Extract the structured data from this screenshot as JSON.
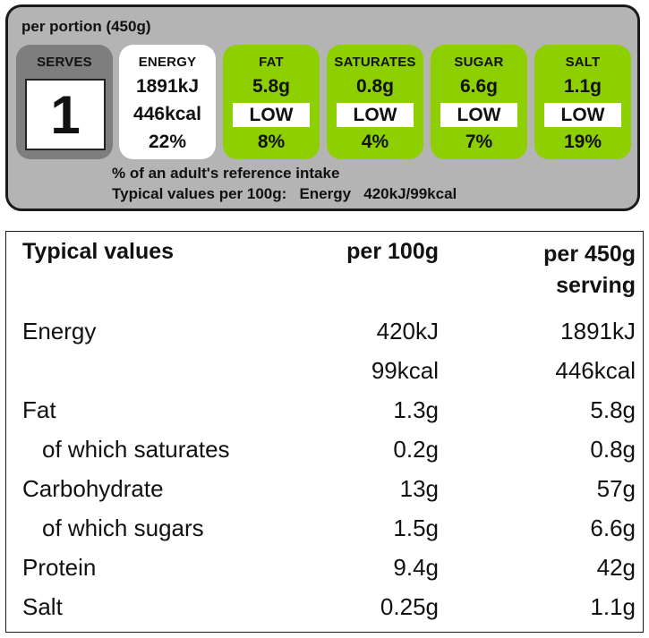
{
  "front_label": {
    "portion_title": "per portion  (450g)",
    "serves": {
      "name": "SERVES",
      "value": "1"
    },
    "energy": {
      "name": "ENERGY",
      "kj": "1891kJ",
      "kcal": "446kcal",
      "percent": "22%"
    },
    "nutrients": [
      {
        "name": "FAT",
        "amount": "5.8g",
        "level": "LOW",
        "percent": "8%"
      },
      {
        "name": "SATURATES",
        "amount": "0.8g",
        "level": "LOW",
        "percent": "4%"
      },
      {
        "name": "SUGAR",
        "amount": "6.6g",
        "level": "LOW",
        "percent": "7%"
      },
      {
        "name": "SALT",
        "amount": "1.1g",
        "level": "LOW",
        "percent": "19%"
      }
    ],
    "reference_note": "% of an adult's reference intake",
    "typical_prefix": "Typical values per 100g:",
    "typical_energy_label": "Energy",
    "typical_energy_value": "420kJ/99kcal",
    "colors": {
      "low": "#8dcf00",
      "serves": "#7e7e7e",
      "panel": "#b4b4b4"
    }
  },
  "table": {
    "headers": {
      "label": "Typical values",
      "per100": "per 100g",
      "serving_line1": "per 450g",
      "serving_line2": "serving"
    },
    "rows": [
      {
        "label": "Energy",
        "per100": "420kJ",
        "serving": "1891kJ",
        "indent": false
      },
      {
        "label": "",
        "per100": "99kcal",
        "serving": "446kcal",
        "indent": false
      },
      {
        "label": "Fat",
        "per100": "1.3g",
        "serving": "5.8g",
        "indent": false
      },
      {
        "label": "of which saturates",
        "per100": "0.2g",
        "serving": "0.8g",
        "indent": true
      },
      {
        "label": "Carbohydrate",
        "per100": "13g",
        "serving": "57g",
        "indent": false
      },
      {
        "label": "of which sugars",
        "per100": "1.5g",
        "serving": "6.6g",
        "indent": true
      },
      {
        "label": "Protein",
        "per100": "9.4g",
        "serving": "42g",
        "indent": false
      },
      {
        "label": "Salt",
        "per100": "0.25g",
        "serving": "1.1g",
        "indent": false
      }
    ]
  }
}
